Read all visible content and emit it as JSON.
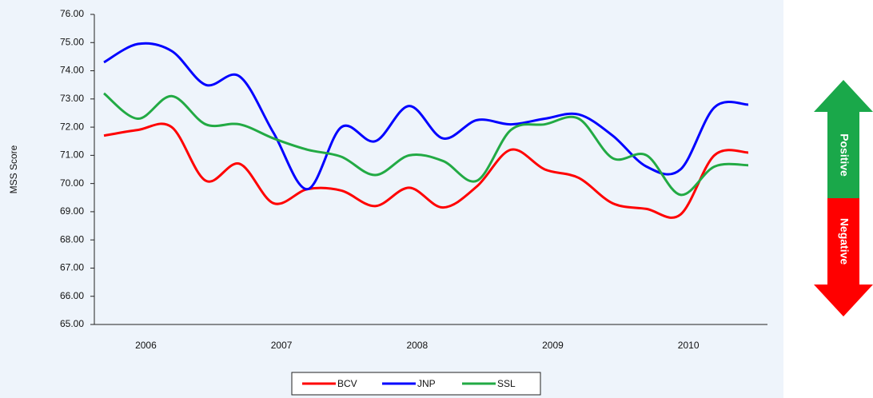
{
  "chart_data": {
    "type": "line",
    "y_label": "MSS Score",
    "categories": [
      null,
      "2006",
      null,
      null,
      null,
      "2007",
      null,
      null,
      null,
      "2008",
      null,
      null,
      null,
      "2009",
      null,
      null,
      null,
      "2010",
      null,
      null
    ],
    "series": [
      {
        "name": "BCV",
        "color": "#ff0000",
        "values": [
          71.7,
          71.9,
          72.0,
          70.1,
          70.7,
          69.3,
          69.8,
          69.75,
          69.2,
          69.85,
          69.15,
          69.9,
          71.2,
          70.5,
          70.2,
          69.3,
          69.1,
          68.9,
          71.0,
          71.1
        ]
      },
      {
        "name": "JNP",
        "color": "#0000ff",
        "values": [
          74.3,
          74.95,
          74.7,
          73.5,
          73.8,
          71.8,
          69.8,
          72.0,
          71.5,
          72.75,
          71.6,
          72.25,
          72.1,
          72.3,
          72.45,
          71.7,
          70.6,
          70.5,
          72.7,
          72.8
        ]
      },
      {
        "name": "SSL",
        "color": "#22aa44",
        "values": [
          73.2,
          72.3,
          73.1,
          72.1,
          72.1,
          71.6,
          71.2,
          70.95,
          70.3,
          71.0,
          70.8,
          70.1,
          71.9,
          72.1,
          72.3,
          70.9,
          71.0,
          69.6,
          70.6,
          70.65
        ]
      }
    ],
    "ylim": [
      65,
      76
    ],
    "yticks": [
      {
        "value": 65,
        "label": "65.00"
      },
      {
        "value": 66,
        "label": "66.00"
      },
      {
        "value": 67,
        "label": "67.00"
      },
      {
        "value": 68,
        "label": "68.00"
      },
      {
        "value": 69,
        "label": "69.00"
      },
      {
        "value": 70,
        "label": "70.00"
      },
      {
        "value": 71,
        "label": "71.00"
      },
      {
        "value": 72,
        "label": "72.00"
      },
      {
        "value": 73,
        "label": "73.00"
      },
      {
        "value": 74,
        "label": "74.00"
      },
      {
        "value": 75,
        "label": "75.00"
      },
      {
        "value": 76,
        "label": "76.00"
      }
    ],
    "legend": "bottom",
    "annotations": [
      "Positive",
      "Negative"
    ]
  }
}
